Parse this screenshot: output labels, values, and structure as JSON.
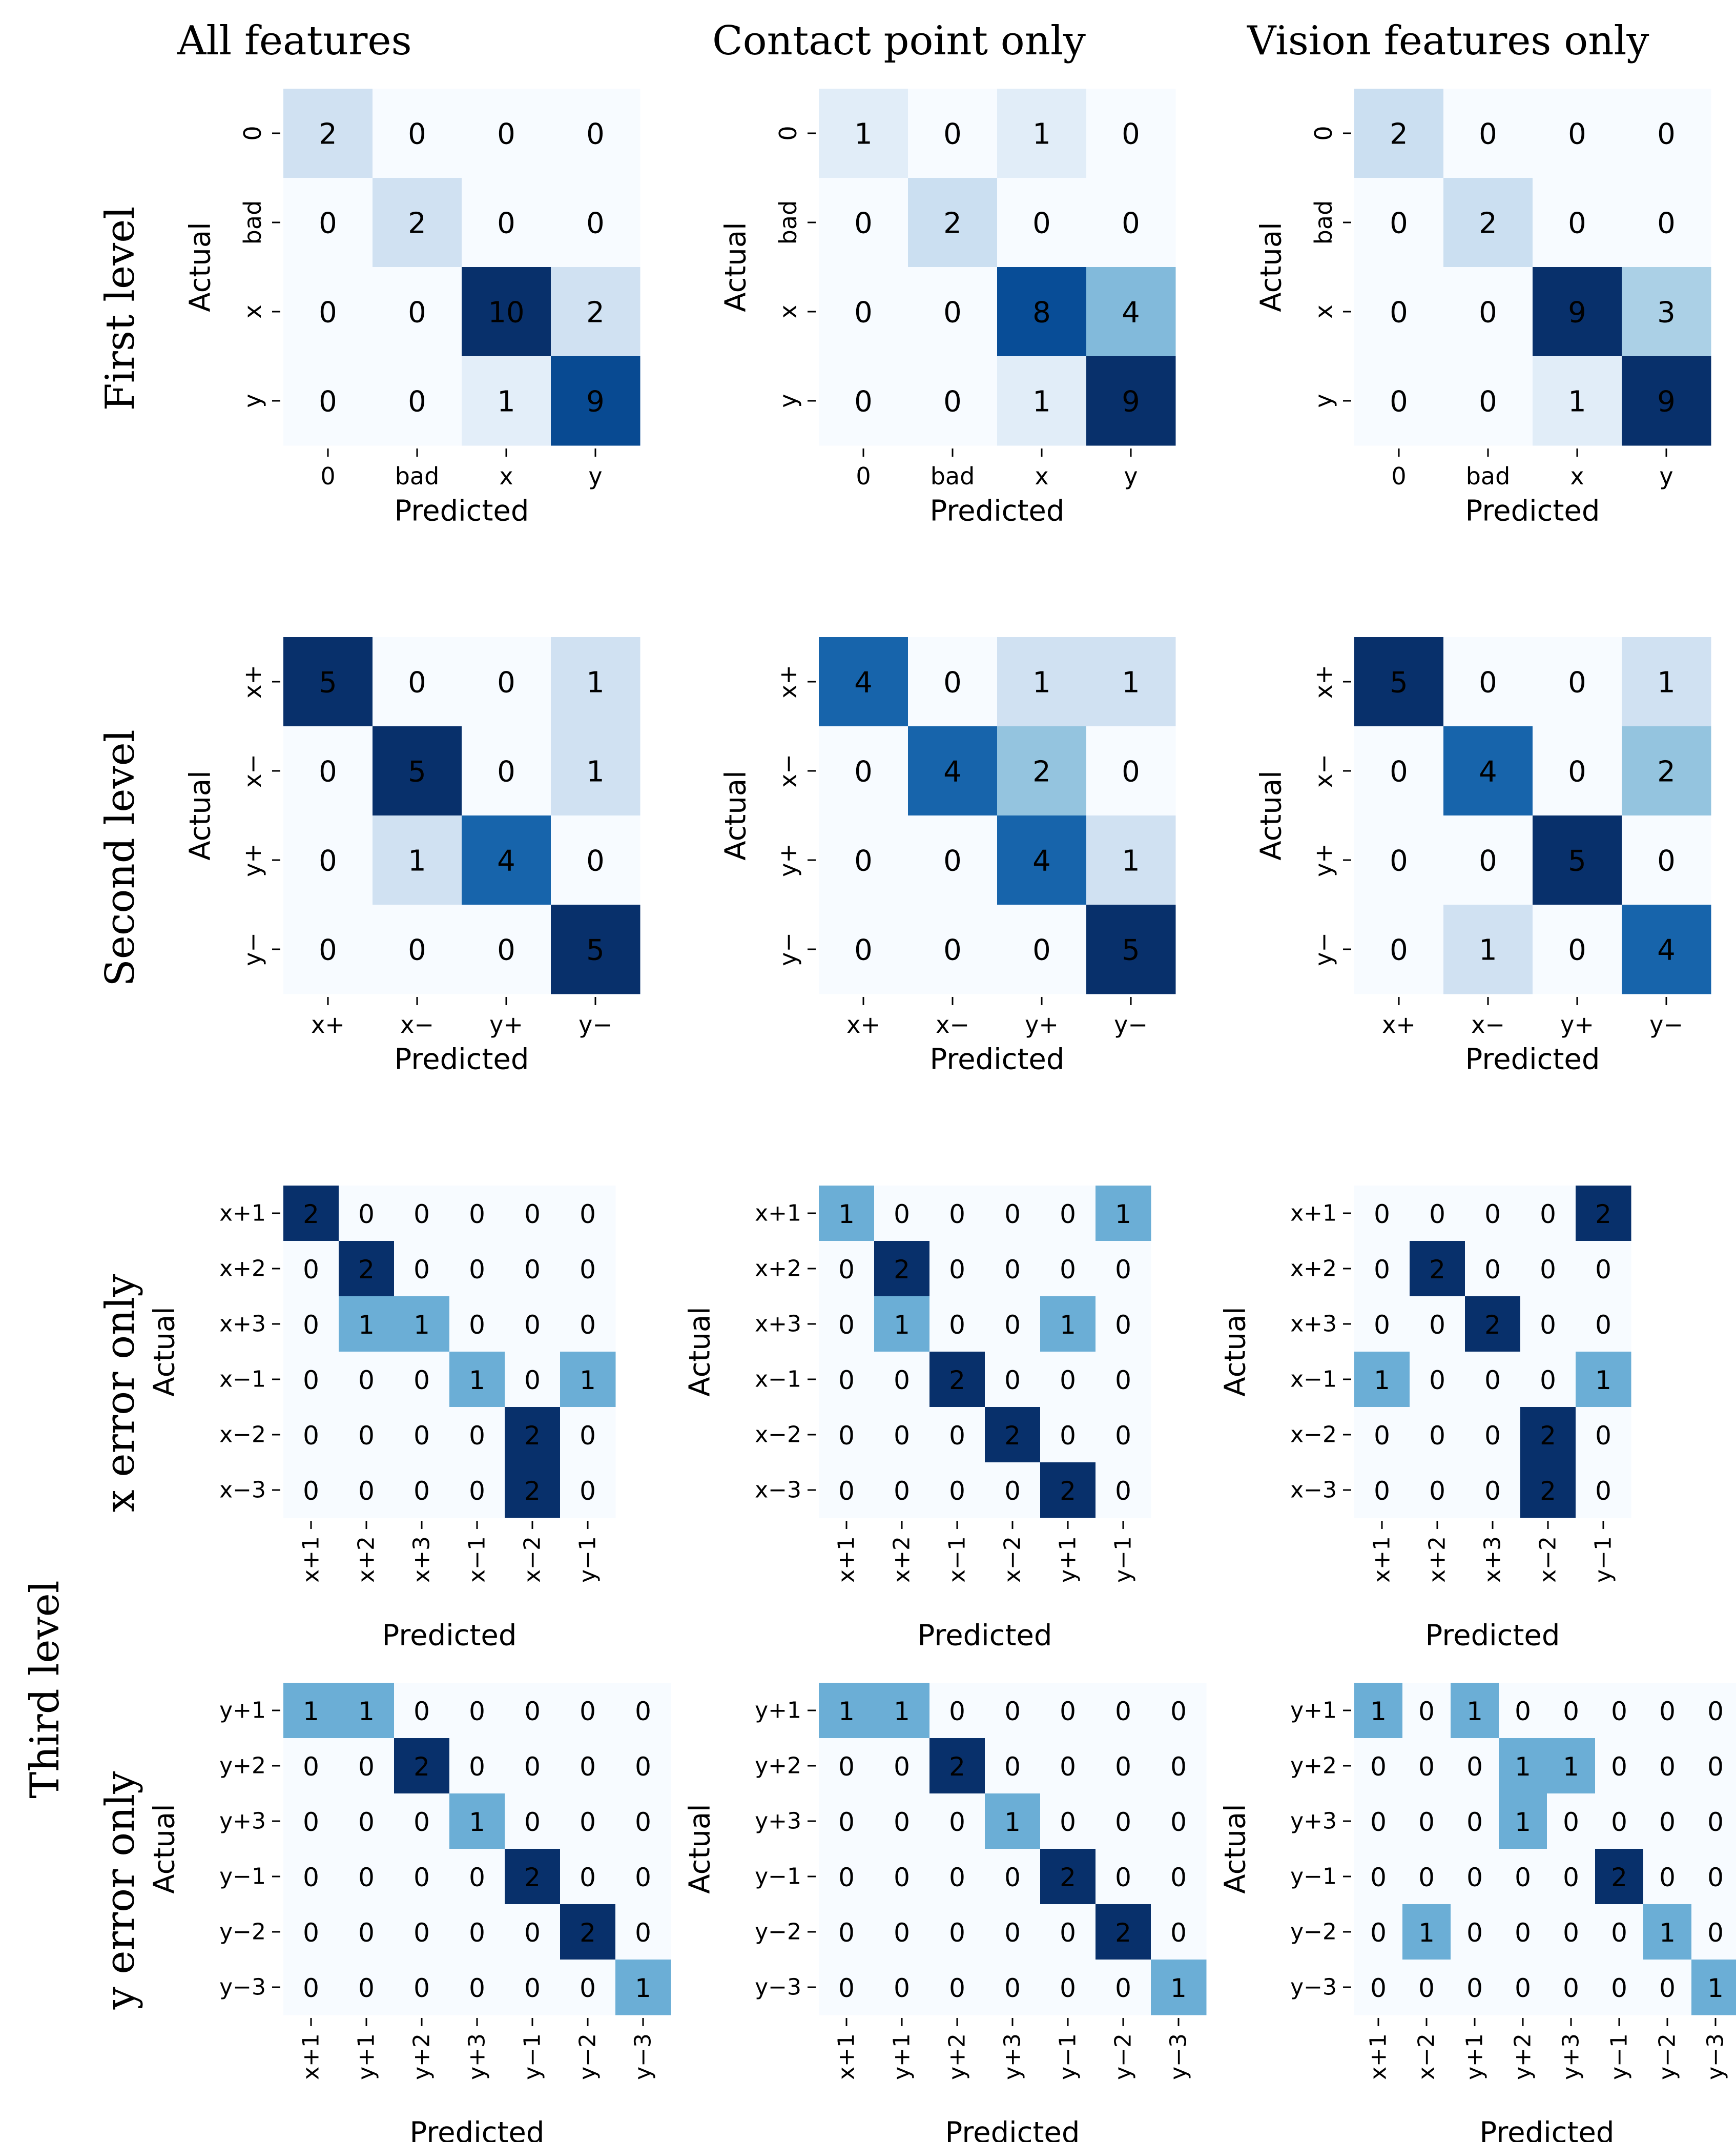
{
  "chart_data": {
    "type": "heatmap",
    "columns": [
      "All features",
      "Contact point only",
      "Vision features only"
    ],
    "row_labels": [
      "First level",
      "Second level",
      "x error only",
      "y error only"
    ],
    "group_label": "Third level",
    "xlabel": "Predicted",
    "ylabel": "Actual",
    "colormap": "Blues",
    "colorbar": false,
    "panels": [
      {
        "row": 0,
        "col": 0,
        "y_categories": [
          "0",
          "bad",
          "x",
          "y"
        ],
        "x_categories": [
          "0",
          "bad",
          "x",
          "y"
        ],
        "tick_rotation": "horizontal",
        "values": [
          [
            2,
            0,
            0,
            0
          ],
          [
            0,
            2,
            0,
            0
          ],
          [
            0,
            0,
            10,
            2
          ],
          [
            0,
            0,
            1,
            9
          ]
        ]
      },
      {
        "row": 0,
        "col": 1,
        "y_categories": [
          "0",
          "bad",
          "x",
          "y"
        ],
        "x_categories": [
          "0",
          "bad",
          "x",
          "y"
        ],
        "tick_rotation": "horizontal",
        "values": [
          [
            1,
            0,
            1,
            0
          ],
          [
            0,
            2,
            0,
            0
          ],
          [
            0,
            0,
            8,
            4
          ],
          [
            0,
            0,
            1,
            9
          ]
        ]
      },
      {
        "row": 0,
        "col": 2,
        "y_categories": [
          "0",
          "bad",
          "x",
          "y"
        ],
        "x_categories": [
          "0",
          "bad",
          "x",
          "y"
        ],
        "tick_rotation": "horizontal",
        "values": [
          [
            2,
            0,
            0,
            0
          ],
          [
            0,
            2,
            0,
            0
          ],
          [
            0,
            0,
            9,
            3
          ],
          [
            0,
            0,
            1,
            9
          ]
        ]
      },
      {
        "row": 1,
        "col": 0,
        "y_categories": [
          "x+",
          "x−",
          "y+",
          "y−"
        ],
        "x_categories": [
          "x+",
          "x−",
          "y+",
          "y−"
        ],
        "tick_rotation": "horizontal",
        "values": [
          [
            5,
            0,
            0,
            1
          ],
          [
            0,
            5,
            0,
            1
          ],
          [
            0,
            1,
            4,
            0
          ],
          [
            0,
            0,
            0,
            5
          ]
        ]
      },
      {
        "row": 1,
        "col": 1,
        "y_categories": [
          "x+",
          "x−",
          "y+",
          "y−"
        ],
        "x_categories": [
          "x+",
          "x−",
          "y+",
          "y−"
        ],
        "tick_rotation": "horizontal",
        "values": [
          [
            4,
            0,
            1,
            1
          ],
          [
            0,
            4,
            2,
            0
          ],
          [
            0,
            0,
            4,
            1
          ],
          [
            0,
            0,
            0,
            5
          ]
        ]
      },
      {
        "row": 1,
        "col": 2,
        "y_categories": [
          "x+",
          "x−",
          "y+",
          "y−"
        ],
        "x_categories": [
          "x+",
          "x−",
          "y+",
          "y−"
        ],
        "tick_rotation": "horizontal",
        "values": [
          [
            5,
            0,
            0,
            1
          ],
          [
            0,
            4,
            0,
            2
          ],
          [
            0,
            0,
            5,
            0
          ],
          [
            0,
            1,
            0,
            4
          ]
        ]
      },
      {
        "row": 2,
        "col": 0,
        "y_categories": [
          "x+1",
          "x+2",
          "x+3",
          "x−1",
          "x−2",
          "x−3"
        ],
        "x_categories": [
          "x+1",
          "x+2",
          "x+3",
          "x−1",
          "x−2",
          "y−1"
        ],
        "tick_rotation": "vertical",
        "values": [
          [
            2,
            0,
            0,
            0,
            0,
            0
          ],
          [
            0,
            2,
            0,
            0,
            0,
            0
          ],
          [
            0,
            1,
            1,
            0,
            0,
            0
          ],
          [
            0,
            0,
            0,
            1,
            0,
            1
          ],
          [
            0,
            0,
            0,
            0,
            2,
            0
          ],
          [
            0,
            0,
            0,
            0,
            2,
            0
          ]
        ]
      },
      {
        "row": 2,
        "col": 1,
        "y_categories": [
          "x+1",
          "x+2",
          "x+3",
          "x−1",
          "x−2",
          "x−3"
        ],
        "x_categories": [
          "x+1",
          "x+2",
          "x−1",
          "x−2",
          "y+1",
          "y−1"
        ],
        "tick_rotation": "vertical",
        "values": [
          [
            1,
            0,
            0,
            0,
            0,
            1
          ],
          [
            0,
            2,
            0,
            0,
            0,
            0
          ],
          [
            0,
            1,
            0,
            0,
            1,
            0
          ],
          [
            0,
            0,
            2,
            0,
            0,
            0
          ],
          [
            0,
            0,
            0,
            2,
            0,
            0
          ],
          [
            0,
            0,
            0,
            0,
            2,
            0
          ]
        ]
      },
      {
        "row": 2,
        "col": 2,
        "y_categories": [
          "x+1",
          "x+2",
          "x+3",
          "x−1",
          "x−2",
          "x−3"
        ],
        "x_categories": [
          "x+1",
          "x+2",
          "x+3",
          "x−2",
          "y−1"
        ],
        "tick_rotation": "vertical",
        "values": [
          [
            0,
            0,
            0,
            0,
            2
          ],
          [
            0,
            2,
            0,
            0,
            0
          ],
          [
            0,
            0,
            2,
            0,
            0
          ],
          [
            1,
            0,
            0,
            0,
            1
          ],
          [
            0,
            0,
            0,
            2,
            0
          ],
          [
            0,
            0,
            0,
            2,
            0
          ]
        ]
      },
      {
        "row": 3,
        "col": 0,
        "y_categories": [
          "y+1",
          "y+2",
          "y+3",
          "y−1",
          "y−2",
          "y−3"
        ],
        "x_categories": [
          "x+1",
          "y+1",
          "y+2",
          "y+3",
          "y−1",
          "y−2",
          "y−3"
        ],
        "tick_rotation": "vertical",
        "values": [
          [
            1,
            1,
            0,
            0,
            0,
            0,
            0
          ],
          [
            0,
            0,
            2,
            0,
            0,
            0,
            0
          ],
          [
            0,
            0,
            0,
            1,
            0,
            0,
            0
          ],
          [
            0,
            0,
            0,
            0,
            2,
            0,
            0
          ],
          [
            0,
            0,
            0,
            0,
            0,
            2,
            0
          ],
          [
            0,
            0,
            0,
            0,
            0,
            0,
            1
          ]
        ]
      },
      {
        "row": 3,
        "col": 1,
        "y_categories": [
          "y+1",
          "y+2",
          "y+3",
          "y−1",
          "y−2",
          "y−3"
        ],
        "x_categories": [
          "x+1",
          "y+1",
          "y+2",
          "y+3",
          "y−1",
          "y−2",
          "y−3"
        ],
        "tick_rotation": "vertical",
        "values": [
          [
            1,
            1,
            0,
            0,
            0,
            0,
            0
          ],
          [
            0,
            0,
            2,
            0,
            0,
            0,
            0
          ],
          [
            0,
            0,
            0,
            1,
            0,
            0,
            0
          ],
          [
            0,
            0,
            0,
            0,
            2,
            0,
            0
          ],
          [
            0,
            0,
            0,
            0,
            0,
            2,
            0
          ],
          [
            0,
            0,
            0,
            0,
            0,
            0,
            1
          ]
        ]
      },
      {
        "row": 3,
        "col": 2,
        "y_categories": [
          "y+1",
          "y+2",
          "y+3",
          "y−1",
          "y−2",
          "y−3"
        ],
        "x_categories": [
          "x+1",
          "x−2",
          "y+1",
          "y+2",
          "y+3",
          "y−1",
          "y−2",
          "y−3"
        ],
        "tick_rotation": "vertical",
        "values": [
          [
            1,
            0,
            1,
            0,
            0,
            0,
            0,
            0
          ],
          [
            0,
            0,
            0,
            1,
            1,
            0,
            0,
            0
          ],
          [
            0,
            0,
            0,
            1,
            0,
            0,
            0,
            0
          ],
          [
            0,
            0,
            0,
            0,
            0,
            2,
            0,
            0
          ],
          [
            0,
            1,
            0,
            0,
            0,
            0,
            1,
            0
          ],
          [
            0,
            0,
            0,
            0,
            0,
            0,
            0,
            1
          ]
        ]
      }
    ]
  }
}
